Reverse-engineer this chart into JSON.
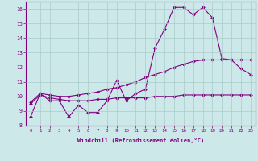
{
  "xlabel": "Windchill (Refroidissement éolien,°C)",
  "xlim": [
    -0.5,
    23.5
  ],
  "ylim": [
    8,
    16.5
  ],
  "xticks": [
    0,
    1,
    2,
    3,
    4,
    5,
    6,
    7,
    8,
    9,
    10,
    11,
    12,
    13,
    14,
    15,
    16,
    17,
    18,
    19,
    20,
    21,
    22,
    23
  ],
  "yticks": [
    8,
    9,
    10,
    11,
    12,
    13,
    14,
    15,
    16
  ],
  "line1": [
    8.6,
    10.2,
    9.7,
    9.7,
    8.6,
    9.4,
    8.9,
    8.9,
    9.7,
    11.1,
    9.7,
    10.2,
    10.5,
    13.3,
    14.6,
    16.1,
    16.1,
    15.6,
    16.1,
    15.4,
    12.6,
    12.5,
    11.9,
    11.5
  ],
  "line2": [
    9.6,
    10.2,
    10.1,
    10.0,
    10.0,
    10.1,
    10.2,
    10.3,
    10.5,
    10.6,
    10.8,
    11.0,
    11.3,
    11.5,
    11.7,
    12.0,
    12.2,
    12.4,
    12.5,
    12.5,
    12.5,
    12.5,
    12.5,
    12.5
  ],
  "line3": [
    9.5,
    10.1,
    9.9,
    9.8,
    9.7,
    9.7,
    9.7,
    9.8,
    9.8,
    9.9,
    9.9,
    9.9,
    9.9,
    10.0,
    10.0,
    10.0,
    10.1,
    10.1,
    10.1,
    10.1,
    10.1,
    10.1,
    10.1,
    10.1
  ],
  "line_color": "#800080",
  "bg_color": "#cce8e8",
  "grid_color": "#aacccc",
  "axis_color": "#800080",
  "label_color": "#800080"
}
